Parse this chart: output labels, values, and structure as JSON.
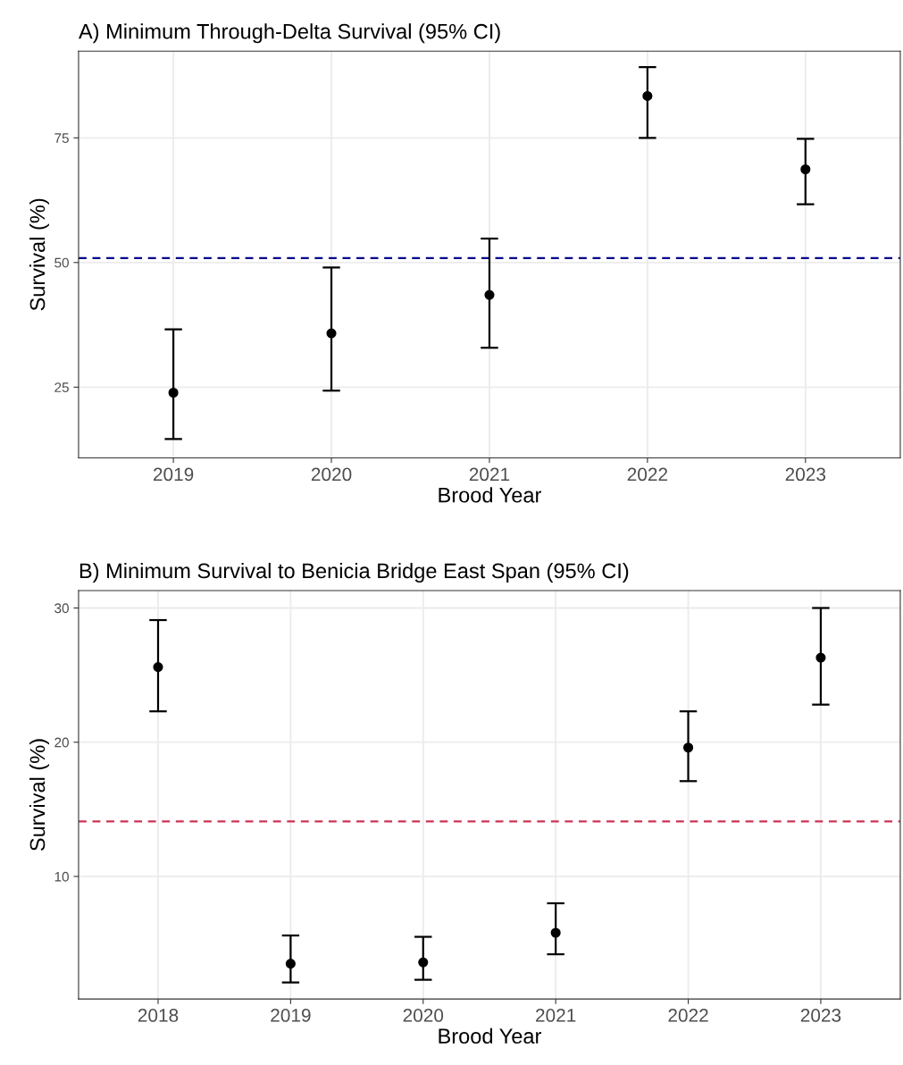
{
  "chart_data": [
    {
      "type": "scatter",
      "title": "A) Minimum Through-Delta Survival (95% CI)",
      "xlabel": "Brood Year",
      "ylabel": "Survival (%)",
      "categories": [
        "2019",
        "2020",
        "2021",
        "2022",
        "2023"
      ],
      "series": [
        {
          "color": "#000000",
          "values": [
            23.9,
            35.8,
            43.5,
            83.4,
            68.7
          ],
          "errors": [
            [
              14.6,
              36.6
            ],
            [
              24.3,
              49.0
            ],
            [
              32.9,
              54.8
            ],
            [
              75.0,
              89.2
            ],
            [
              61.7,
              74.8
            ]
          ]
        }
      ],
      "ylim": [
        10.8,
        92.4
      ],
      "yticks": [
        25,
        50,
        75
      ],
      "grid": true,
      "marker": "circle",
      "legend": false,
      "ref_lines": [
        {
          "axis": "y",
          "value": 50.9,
          "color": "#00008b",
          "line_style": "dashed"
        }
      ]
    },
    {
      "type": "scatter",
      "title": "B) Minimum Survival to Benicia Bridge East Span (95% CI)",
      "xlabel": "Brood Year",
      "ylabel": "Survival (%)",
      "categories": [
        "2018",
        "2019",
        "2020",
        "2021",
        "2022",
        "2023"
      ],
      "series": [
        {
          "color": "#000000",
          "values": [
            25.6,
            3.5,
            3.6,
            5.8,
            19.6,
            26.3
          ],
          "errors": [
            [
              22.3,
              29.1
            ],
            [
              2.1,
              5.6
            ],
            [
              2.3,
              5.5
            ],
            [
              4.2,
              8.0
            ],
            [
              17.1,
              22.3
            ],
            [
              22.8,
              30.0
            ]
          ]
        }
      ],
      "ylim": [
        0.87,
        31.3
      ],
      "yticks": [
        10,
        20,
        30
      ],
      "grid": true,
      "marker": "circle",
      "legend": false,
      "ref_lines": [
        {
          "axis": "y",
          "value": 14.1,
          "color": "#cc3355",
          "line_style": "dashed"
        }
      ]
    }
  ]
}
